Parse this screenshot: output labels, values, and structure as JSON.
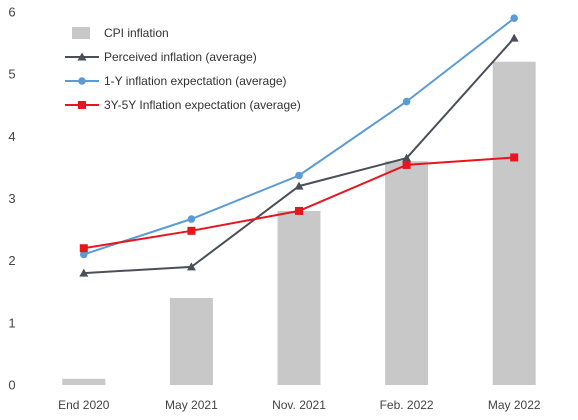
{
  "chart_data": {
    "type": "bar",
    "categories": [
      "End 2020",
      "May 2021",
      "Nov. 2021",
      "Feb. 2022",
      "May 2022"
    ],
    "ylim": [
      0,
      6
    ],
    "yticks": [
      0,
      1,
      2,
      3,
      4,
      5,
      6
    ],
    "grid": false,
    "legend_position": "top-left",
    "title": "",
    "xlabel": "",
    "ylabel": "",
    "series": [
      {
        "name": "CPI inflation",
        "type": "bar",
        "color": "#c8c8c8",
        "marker": "none",
        "values": [
          0.1,
          1.4,
          2.8,
          3.6,
          5.2
        ]
      },
      {
        "name": "Perceived inflation (average)",
        "type": "line",
        "color": "#4a4f59",
        "marker": "triangle",
        "values": [
          1.8,
          1.9,
          3.2,
          3.65,
          5.58
        ]
      },
      {
        "name": "1-Y inflation expectation (average)",
        "type": "line",
        "color": "#5b9bd5",
        "marker": "circle",
        "values": [
          2.1,
          2.67,
          3.37,
          4.56,
          5.9
        ]
      },
      {
        "name": "3Y-5Y Inflation expectation (average)",
        "type": "line",
        "color": "#e8141e",
        "marker": "square",
        "values": [
          2.2,
          2.48,
          2.8,
          3.54,
          3.66
        ]
      }
    ]
  }
}
